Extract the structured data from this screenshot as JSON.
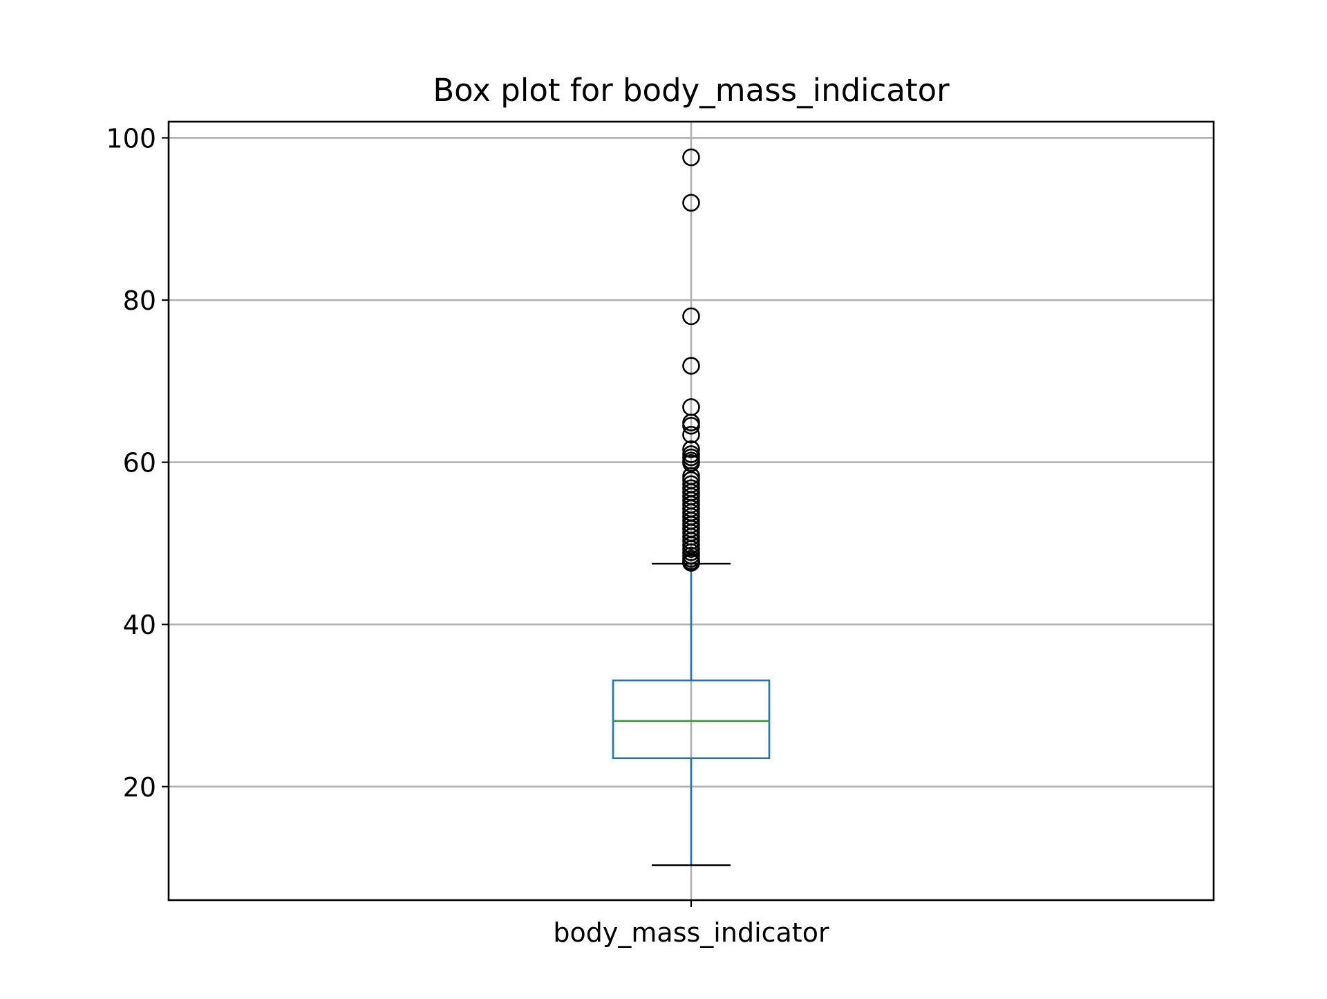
{
  "chart_data": {
    "type": "box",
    "title": "Box plot for body_mass_indicator",
    "xlabel": "",
    "ylabel": "",
    "categories": [
      "body_mass_indicator"
    ],
    "ylim": [
      6,
      102
    ],
    "yticks": [
      20,
      40,
      60,
      80,
      100
    ],
    "grid": true,
    "boxes": [
      {
        "category": "body_mass_indicator",
        "whisker_low": 10.3,
        "q1": 23.5,
        "median": 28.1,
        "q3": 33.1,
        "whisker_high": 47.5,
        "outliers": [
          97.6,
          92.0,
          78.0,
          71.9,
          66.8,
          64.9,
          64.5,
          63.4,
          61.6,
          61.0,
          60.6,
          60.2,
          59.9,
          58.3,
          57.8,
          57.3,
          56.8,
          56.3,
          55.8,
          55.3,
          54.8,
          54.3,
          53.8,
          53.3,
          52.8,
          52.3,
          51.8,
          51.3,
          50.8,
          50.3,
          49.8,
          49.3,
          48.9,
          48.5,
          48.1,
          47.8,
          47.6
        ]
      }
    ],
    "colors": {
      "box": "#1f77b4",
      "median": "#2ca02c",
      "caps": "#000000",
      "outliers": "#000000",
      "grid": "#b0b0b0"
    }
  }
}
